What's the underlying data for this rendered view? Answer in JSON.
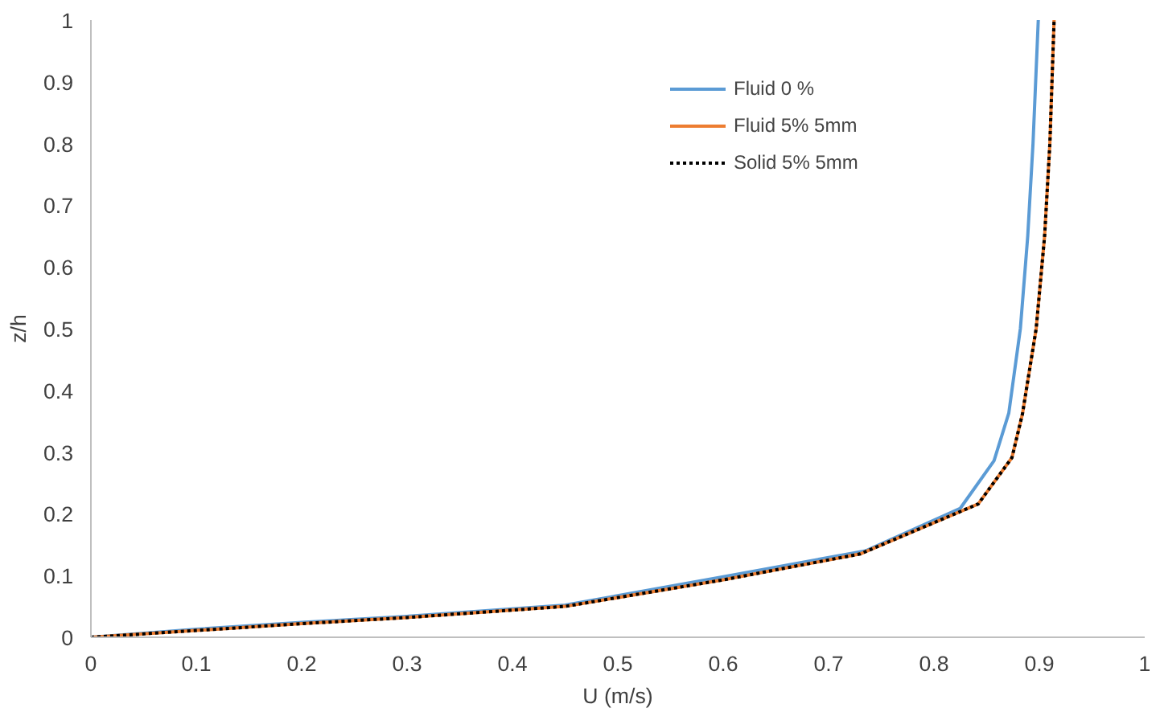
{
  "chart_data": {
    "type": "line",
    "xlabel": "U (m/s)",
    "ylabel": "z/h",
    "xlim": [
      0,
      1
    ],
    "ylim": [
      0,
      1
    ],
    "xticks": [
      0,
      0.1,
      0.2,
      0.3,
      0.4,
      0.5,
      0.6,
      0.7,
      0.8,
      0.9,
      1
    ],
    "yticks": [
      0,
      0.1,
      0.2,
      0.3,
      0.4,
      0.5,
      0.6,
      0.7,
      0.8,
      0.9,
      1
    ],
    "grid": false,
    "legend": "top right",
    "marker": "none",
    "series": [
      {
        "name": "Fluid 0 %",
        "color": "#5b9bd5",
        "line_style": "solid",
        "x": [
          0,
          0.1,
          0.2,
          0.3,
          0.45,
          0.6,
          0.735,
          0.825,
          0.857,
          0.871,
          0.882,
          0.889,
          0.894,
          0.899
        ],
        "values": [
          0,
          0.013,
          0.024,
          0.034,
          0.052,
          0.098,
          0.14,
          0.209,
          0.286,
          0.363,
          0.5,
          0.65,
          0.8,
          1
        ]
      },
      {
        "name": "Fluid 5% 5mm",
        "color": "#ed7d31",
        "line_style": "solid",
        "x": [
          0,
          0.1,
          0.2,
          0.3,
          0.45,
          0.6,
          0.73,
          0.842,
          0.874,
          0.884,
          0.897,
          0.905,
          0.91,
          0.914
        ],
        "values": [
          0,
          0.011,
          0.022,
          0.032,
          0.05,
          0.093,
          0.135,
          0.216,
          0.291,
          0.362,
          0.5,
          0.65,
          0.8,
          1
        ]
      },
      {
        "name": "Solid 5% 5mm",
        "color": "#000000",
        "line_style": "dotted",
        "x": [
          0,
          0.1,
          0.2,
          0.3,
          0.45,
          0.6,
          0.73,
          0.842,
          0.874,
          0.884,
          0.897,
          0.905,
          0.91,
          0.914
        ],
        "values": [
          0,
          0.011,
          0.022,
          0.032,
          0.05,
          0.093,
          0.135,
          0.216,
          0.291,
          0.362,
          0.5,
          0.65,
          0.8,
          1
        ]
      }
    ]
  }
}
